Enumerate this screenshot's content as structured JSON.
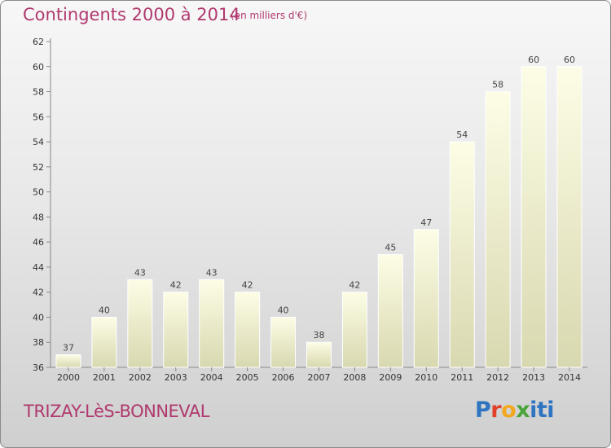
{
  "header": {
    "title": "Contingents 2000 à 2014",
    "subtitle": "(en milliers d'€)"
  },
  "footer": {
    "place": "TRIZAY-LèS-BONNEVAL",
    "brand": "Proxiti"
  },
  "colors": {
    "title": "#b0396e",
    "bar_top": "#fdfde6",
    "bar_bottom": "#d8d8b0"
  },
  "chart_data": {
    "type": "bar",
    "categories": [
      "2000",
      "2001",
      "2002",
      "2003",
      "2004",
      "2005",
      "2006",
      "2007",
      "2008",
      "2009",
      "2010",
      "2011",
      "2012",
      "2013",
      "2014"
    ],
    "values": [
      37,
      40,
      43,
      42,
      43,
      42,
      40,
      38,
      42,
      45,
      47,
      54,
      58,
      60,
      60
    ],
    "title": "Contingents 2000 à 2014",
    "subtitle": "(en milliers d'€)",
    "xlabel": "",
    "ylabel": "",
    "ylim": [
      36,
      62
    ],
    "yticks": [
      36,
      38,
      40,
      42,
      44,
      46,
      48,
      50,
      52,
      54,
      56,
      58,
      60,
      62
    ],
    "grid": false,
    "data_labels": true
  }
}
